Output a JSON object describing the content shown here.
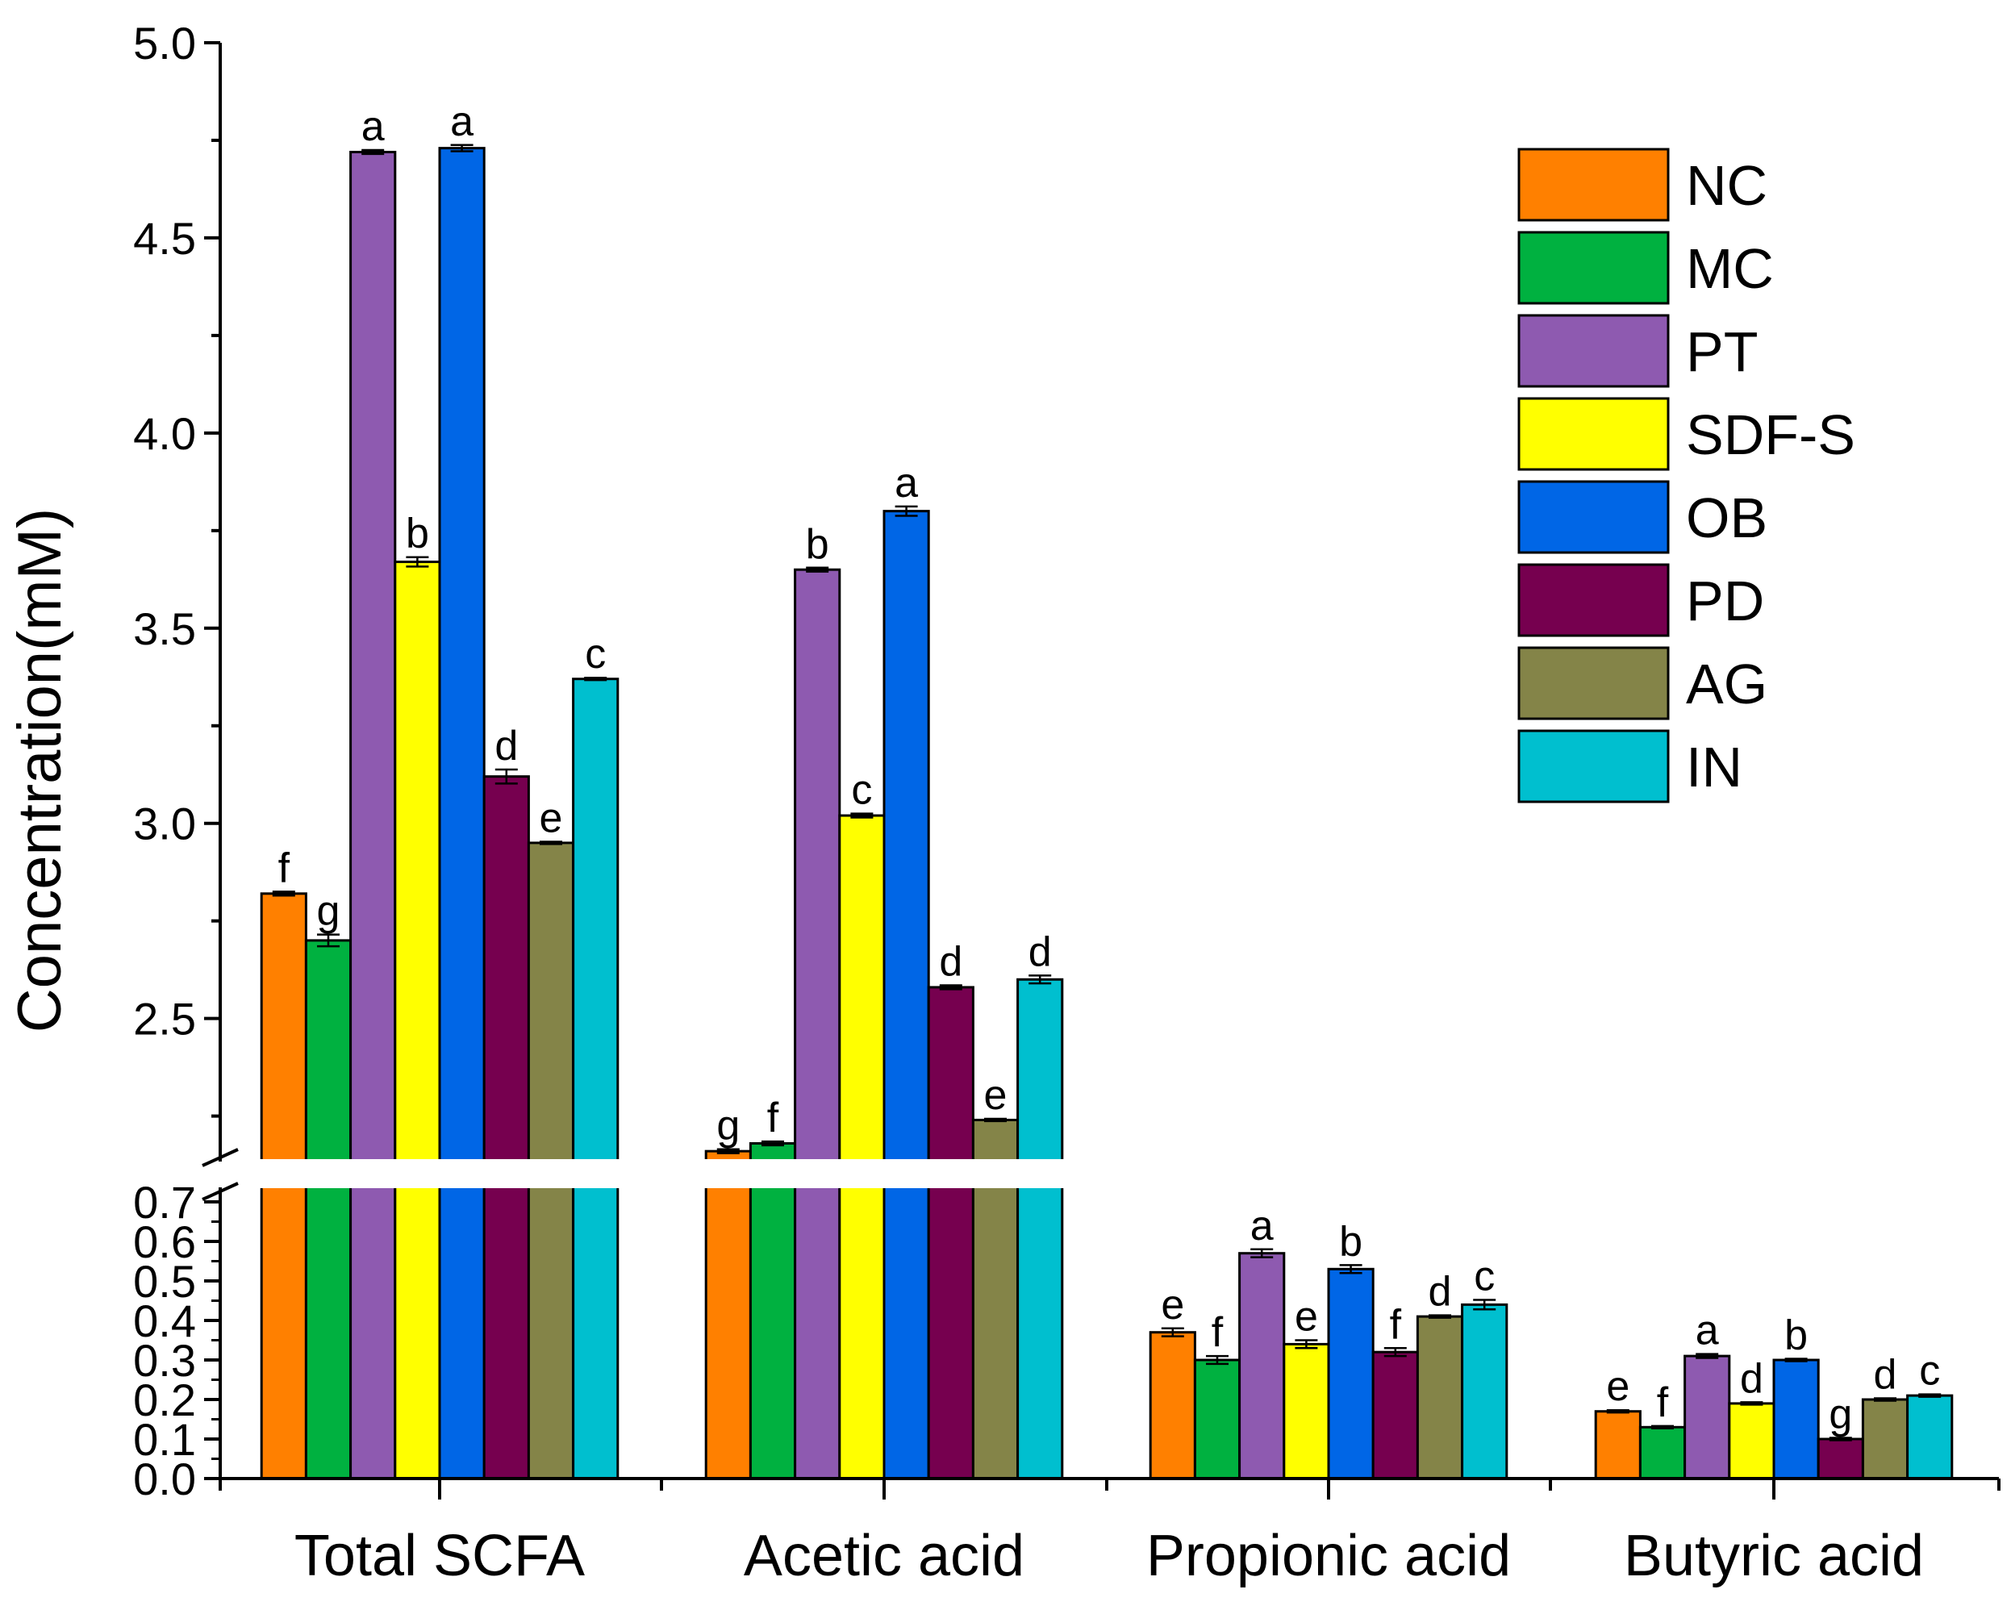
{
  "chart_data": {
    "type": "bar",
    "ylabel": "Concentration(mM)",
    "y_axis_break": {
      "lower_range": [
        0.0,
        0.7
      ],
      "upper_range": [
        2.15,
        5.0
      ]
    },
    "upper_ticks": [
      "2.5",
      "3.0",
      "3.5",
      "4.0",
      "4.5",
      "5.0"
    ],
    "lower_ticks": [
      "0.0",
      "0.1",
      "0.2",
      "0.3",
      "0.4",
      "0.5",
      "0.6",
      "0.7"
    ],
    "categories": [
      "Total SCFA",
      "Acetic acid",
      "Propionic acid",
      "Butyric acid"
    ],
    "series": [
      {
        "name": "NC",
        "color": "#FF8000",
        "values": [
          2.82,
          2.16,
          0.37,
          0.17
        ],
        "errors": [
          0.005,
          0.005,
          0.01,
          0.003
        ],
        "letters": [
          "f",
          "g",
          "e",
          "e"
        ]
      },
      {
        "name": "MC",
        "color": "#00B140",
        "values": [
          2.7,
          2.18,
          0.3,
          0.13
        ],
        "errors": [
          0.015,
          0.005,
          0.01,
          0.003
        ],
        "letters": [
          "g",
          "f",
          "f",
          "f"
        ]
      },
      {
        "name": "PT",
        "color": "#8E5AB0",
        "values": [
          4.72,
          3.65,
          0.57,
          0.31
        ],
        "errors": [
          0.005,
          0.005,
          0.01,
          0.005
        ],
        "letters": [
          "a",
          "b",
          "a",
          "a"
        ]
      },
      {
        "name": "SDF-S",
        "color": "#FFFF00",
        "values": [
          3.67,
          3.02,
          0.34,
          0.19
        ],
        "errors": [
          0.012,
          0.005,
          0.01,
          0.003
        ],
        "letters": [
          "b",
          "c",
          "e",
          "d"
        ]
      },
      {
        "name": "OB",
        "color": "#0066E6",
        "values": [
          4.73,
          3.8,
          0.53,
          0.3
        ],
        "errors": [
          0.008,
          0.012,
          0.01,
          0.003
        ],
        "letters": [
          "a",
          "a",
          "b",
          "b"
        ]
      },
      {
        "name": "PD",
        "color": "#76004F",
        "values": [
          3.12,
          2.58,
          0.32,
          0.1
        ],
        "errors": [
          0.018,
          0.005,
          0.01,
          0.003
        ],
        "letters": [
          "d",
          "d",
          "f",
          "g"
        ]
      },
      {
        "name": "AG",
        "color": "#848448",
        "values": [
          2.95,
          2.24,
          0.41,
          0.2
        ],
        "errors": [
          0.003,
          0.003,
          0.003,
          0.003
        ],
        "letters": [
          "e",
          "e",
          "d",
          "d"
        ]
      },
      {
        "name": "IN",
        "color": "#00BFCF",
        "values": [
          3.37,
          2.6,
          0.44,
          0.21
        ],
        "errors": [
          0.003,
          0.01,
          0.012,
          0.003
        ],
        "letters": [
          "c",
          "d",
          "c",
          "c"
        ]
      }
    ]
  }
}
